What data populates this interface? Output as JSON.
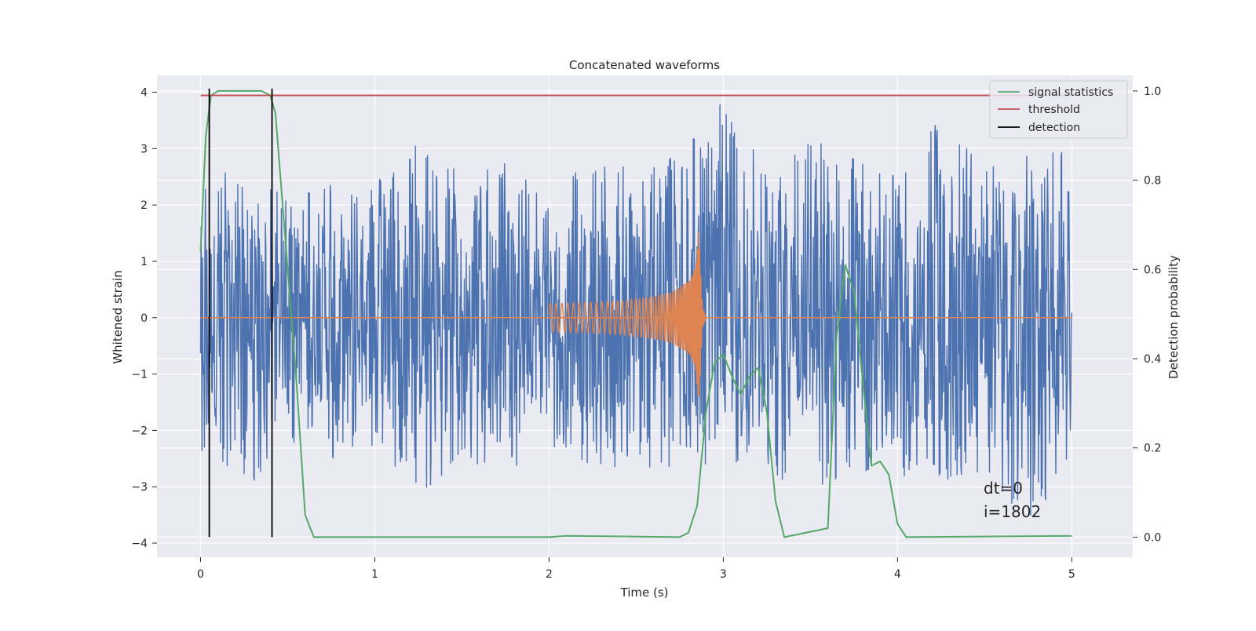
{
  "chart_data": {
    "type": "line",
    "title": "Concatenated waveforms",
    "xlabel": "Time (s)",
    "ylabel": "Whitened strain",
    "ylabel_right": "Detection probability",
    "xlim": [
      -0.25,
      5.35
    ],
    "ylim": [
      -4.25,
      4.3
    ],
    "ylim_right": [
      -0.045,
      1.035
    ],
    "x_ticks": [
      0,
      1,
      2,
      3,
      4,
      5
    ],
    "y_ticks": [
      -4,
      -3,
      -2,
      -1,
      0,
      1,
      2,
      3,
      4
    ],
    "y_ticks_right": [
      0.0,
      0.2,
      0.4,
      0.6,
      0.8,
      1.0
    ],
    "grid": true,
    "legend_position": "top-right",
    "annotation_lines": [
      "dt=0",
      "i=1802"
    ],
    "colors": {
      "strain": "#4c72b0",
      "injection": "#dd8452",
      "signal_statistics": "#55a868",
      "threshold": "#c44e52",
      "detection": "#000000",
      "axes_background": "#eaeaf2",
      "grid": "#ffffff"
    },
    "series": [
      {
        "name": "strain",
        "axis": "left",
        "envelope_upper": {
          "x": [
            0,
            0.25,
            0.5,
            0.75,
            1.0,
            1.25,
            1.5,
            1.75,
            2.0,
            2.25,
            2.5,
            2.75,
            3.0,
            3.25,
            3.5,
            3.75,
            4.0,
            4.25,
            4.5,
            4.75,
            5.0
          ],
          "y": [
            2.95,
            2.4,
            2.2,
            2.55,
            2.45,
            3.25,
            2.6,
            2.8,
            2.4,
            2.9,
            2.6,
            3.1,
            3.9,
            2.6,
            3.3,
            2.9,
            2.8,
            3.6,
            2.7,
            2.9,
            3.1
          ]
        },
        "envelope_lower": {
          "x": [
            0,
            0.25,
            0.5,
            0.75,
            1.0,
            1.25,
            1.5,
            1.75,
            2.0,
            2.25,
            2.5,
            2.75,
            3.0,
            3.25,
            3.5,
            3.75,
            4.0,
            4.25,
            4.5,
            4.75,
            5.0
          ],
          "y": [
            -2.45,
            -3.1,
            -2.4,
            -2.6,
            -2.4,
            -3.15,
            -2.6,
            -2.7,
            -2.4,
            -2.6,
            -2.8,
            -2.75,
            -2.6,
            -2.6,
            -3.45,
            -2.7,
            -2.8,
            -2.9,
            -2.75,
            -3.8,
            -2.4
          ]
        }
      },
      {
        "name": "injection",
        "axis": "left",
        "x": [
          2.0,
          2.2,
          2.4,
          2.6,
          2.7,
          2.8,
          2.84,
          2.86,
          2.88,
          2.9
        ],
        "amplitude": [
          0.25,
          0.27,
          0.3,
          0.38,
          0.45,
          0.65,
          0.9,
          1.6,
          0.2,
          0.02
        ]
      },
      {
        "name": "signal statistics",
        "axis": "right",
        "x": [
          0,
          0.03,
          0.06,
          0.1,
          0.2,
          0.35,
          0.4,
          0.43,
          0.47,
          0.5,
          0.55,
          0.6,
          0.65,
          1.0,
          2.0,
          2.1,
          2.75,
          2.8,
          2.85,
          2.9,
          2.95,
          3.0,
          3.05,
          3.1,
          3.15,
          3.2,
          3.25,
          3.3,
          3.35,
          3.6,
          3.65,
          3.7,
          3.75,
          3.8,
          3.85,
          3.9,
          3.95,
          4.0,
          4.05,
          5.0
        ],
        "y": [
          0.64,
          0.9,
          0.99,
          1.0,
          1.0,
          1.0,
          0.99,
          0.95,
          0.75,
          0.6,
          0.35,
          0.05,
          0.0,
          0.0,
          0.0,
          0.003,
          0.0,
          0.01,
          0.07,
          0.28,
          0.39,
          0.41,
          0.36,
          0.32,
          0.36,
          0.38,
          0.28,
          0.08,
          0.0,
          0.02,
          0.45,
          0.61,
          0.55,
          0.35,
          0.16,
          0.17,
          0.14,
          0.03,
          0.0,
          0.003
        ]
      },
      {
        "name": "threshold",
        "axis": "right",
        "x": [
          0,
          5.0
        ],
        "y": [
          0.99,
          0.99
        ]
      },
      {
        "name": "detection",
        "axis": "right",
        "x_positions": [
          0.05,
          0.41
        ],
        "y_range": [
          0.0,
          1.0
        ]
      }
    ],
    "legend": [
      "signal statistics",
      "threshold",
      "detection"
    ]
  }
}
